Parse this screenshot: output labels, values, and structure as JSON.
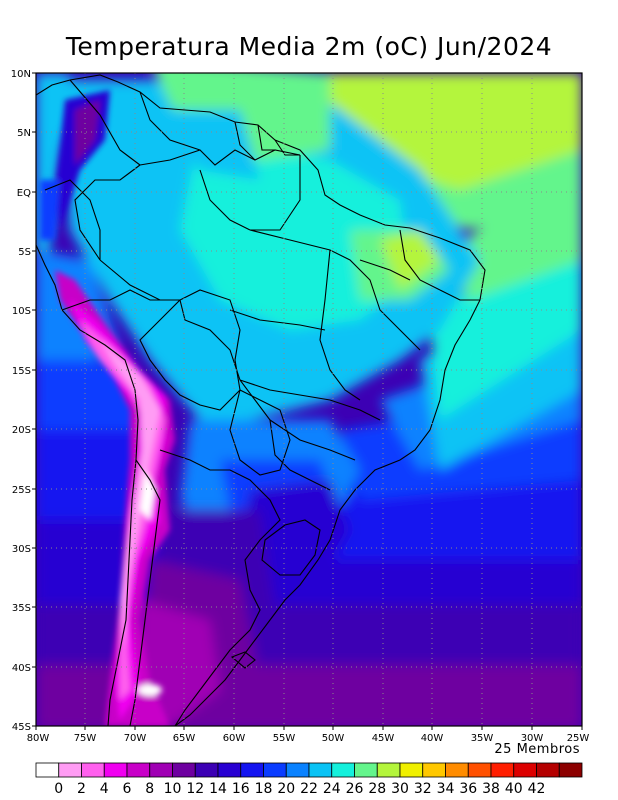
{
  "title": "Temperatura Media 2m (oC) Jun/2024",
  "members": "25 Membros",
  "lat_ticks": [
    "10N",
    "5N",
    "EQ",
    "5S",
    "10S",
    "15S",
    "20S",
    "25S",
    "30S",
    "35S",
    "40S",
    "45S"
  ],
  "lon_ticks": [
    "80W",
    "75W",
    "70W",
    "65W",
    "60W",
    "55W",
    "50W",
    "45W",
    "40W",
    "35W",
    "30W",
    "25W"
  ],
  "colorbar": {
    "colors": [
      "#ffffff",
      "#ff9cf4",
      "#ff60ee",
      "#f000f0",
      "#c800c8",
      "#a000b4",
      "#6e00a0",
      "#3c00b4",
      "#2800d2",
      "#1414f0",
      "#0a3cff",
      "#0a82ff",
      "#0ac3f5",
      "#14f0dc",
      "#64f58c",
      "#b4f53c",
      "#f0f000",
      "#ffc800",
      "#ff8c00",
      "#ff5000",
      "#ff1e00",
      "#dc0000",
      "#b40000",
      "#8c0000"
    ],
    "labels": [
      "0",
      "2",
      "4",
      "6",
      "8",
      "10",
      "12",
      "14",
      "16",
      "18",
      "20",
      "22",
      "24",
      "26",
      "28",
      "30",
      "32",
      "34",
      "36",
      "38",
      "40",
      "42"
    ]
  }
}
